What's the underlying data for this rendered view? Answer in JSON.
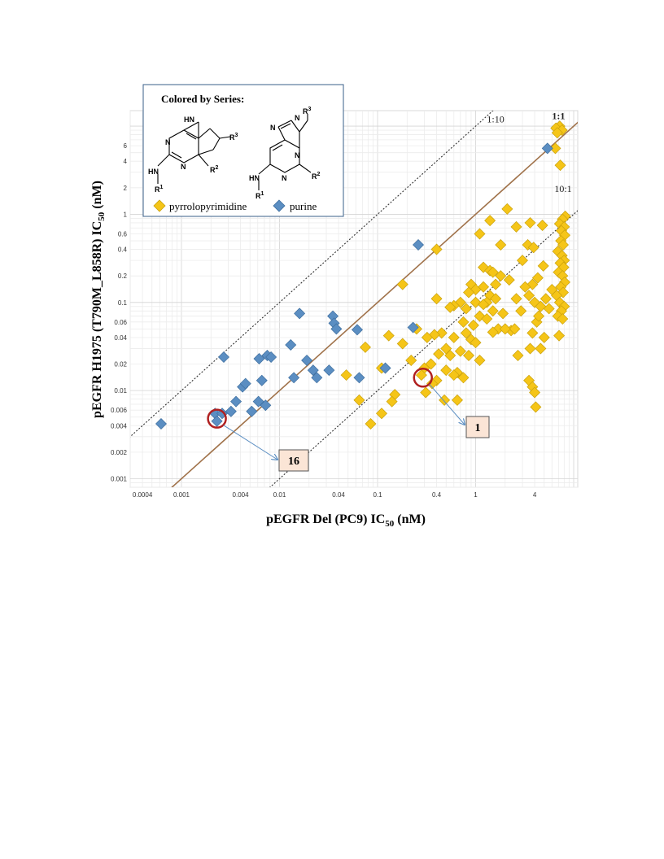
{
  "chart_data": {
    "type": "scatter",
    "xlabel_main": "pEGFR  Del (PC9) IC",
    "xlabel_sub": "50",
    "xlabel_unit": " (nM)",
    "ylabel_main": "pEGFR  H1975  (T790M_L858R)  IC",
    "ylabel_sub": "50",
    "ylabel_unit": " (nM)",
    "x_scale": "log",
    "y_scale": "log",
    "xlim": [
      0.0003,
      11
    ],
    "ylim": [
      0.0008,
      15
    ],
    "x_ticks": [
      {
        "v": 0.0004,
        "label": "0.0004"
      },
      {
        "v": 0.001,
        "label": "0.001"
      },
      {
        "v": 0.004,
        "label": "0.004"
      },
      {
        "v": 0.01,
        "label": "0.01"
      },
      {
        "v": 0.04,
        "label": "0.04"
      },
      {
        "v": 0.1,
        "label": "0.1"
      },
      {
        "v": 0.4,
        "label": "0.4"
      },
      {
        "v": 1,
        "label": "1"
      },
      {
        "v": 4,
        "label": "4"
      }
    ],
    "y_ticks": [
      {
        "v": 0.001,
        "label": "0.001"
      },
      {
        "v": 0.002,
        "label": "0.002"
      },
      {
        "v": 0.004,
        "label": "0.004"
      },
      {
        "v": 0.006,
        "label": "0.006"
      },
      {
        "v": 0.01,
        "label": "0.01"
      },
      {
        "v": 0.02,
        "label": "0.02"
      },
      {
        "v": 0.04,
        "label": "0.04"
      },
      {
        "v": 0.06,
        "label": "0.06"
      },
      {
        "v": 0.1,
        "label": "0.1"
      },
      {
        "v": 0.2,
        "label": "0.2"
      },
      {
        "v": 0.4,
        "label": "0.4"
      },
      {
        "v": 0.6,
        "label": "0.6"
      },
      {
        "v": 1,
        "label": "1"
      },
      {
        "v": 2,
        "label": "2"
      },
      {
        "v": 4,
        "label": "4"
      },
      {
        "v": 6,
        "label": "6"
      }
    ],
    "grid": true,
    "reference_lines": [
      {
        "ratio": 10,
        "label": "1:10",
        "style": "dotted",
        "color": "#333333",
        "label_x": 1.6,
        "label_y": 11
      },
      {
        "ratio": 1,
        "label": "1:1",
        "style": "solid",
        "color": "#a0724a",
        "label_color": "#2eaa4a",
        "label_x": 7.0,
        "label_y": 12
      },
      {
        "ratio": 0.1,
        "label": "10:1",
        "style": "dotted",
        "color": "#333333",
        "label_x": 7.8,
        "label_y": 1.8
      }
    ],
    "legend": {
      "title": "Colored by Series:",
      "placement": "top-left",
      "entries": [
        "pyrrolopyrimidine",
        "purine"
      ]
    },
    "series": [
      {
        "name": "pyrrolopyrimidine",
        "color": "#f5c518",
        "stroke": "#c9a10d",
        "marker": "diamond",
        "points": [
          [
            7.2,
            10
          ],
          [
            6.6,
            9.5
          ],
          [
            7.6,
            9.0
          ],
          [
            6.8,
            8.4
          ],
          [
            6.5,
            5.6
          ],
          [
            7.3,
            3.6
          ],
          [
            8.2,
            0.95
          ],
          [
            7.7,
            0.88
          ],
          [
            7.2,
            0.78
          ],
          [
            8.0,
            0.72
          ],
          [
            7.5,
            0.65
          ],
          [
            8.1,
            0.58
          ],
          [
            7.4,
            0.5
          ],
          [
            7.8,
            0.45
          ],
          [
            6.9,
            0.38
          ],
          [
            7.6,
            0.34
          ],
          [
            8.0,
            0.3
          ],
          [
            7.3,
            0.28
          ],
          [
            7.9,
            0.25
          ],
          [
            7.0,
            0.22
          ],
          [
            7.7,
            0.2
          ],
          [
            8.1,
            0.17
          ],
          [
            7.4,
            0.15
          ],
          [
            7.8,
            0.13
          ],
          [
            6.7,
            0.12
          ],
          [
            7.2,
            0.1
          ],
          [
            8.0,
            0.09
          ],
          [
            7.5,
            0.08
          ],
          [
            6.9,
            0.07
          ],
          [
            7.7,
            0.065
          ],
          [
            7.1,
            0.042
          ],
          [
            2.1,
            1.15
          ],
          [
            1.4,
            0.85
          ],
          [
            1.1,
            0.6
          ],
          [
            1.8,
            0.45
          ],
          [
            3.6,
            0.8
          ],
          [
            4.8,
            0.75
          ],
          [
            2.6,
            0.72
          ],
          [
            3.4,
            0.45
          ],
          [
            3.9,
            0.42
          ],
          [
            3.0,
            0.3
          ],
          [
            1.2,
            0.25
          ],
          [
            1.4,
            0.23
          ],
          [
            1.5,
            0.22
          ],
          [
            1.8,
            0.2
          ],
          [
            2.2,
            0.18
          ],
          [
            1.6,
            0.16
          ],
          [
            0.9,
            0.16
          ],
          [
            1.2,
            0.15
          ],
          [
            1.0,
            0.14
          ],
          [
            0.85,
            0.13
          ],
          [
            1.4,
            0.12
          ],
          [
            1.6,
            0.11
          ],
          [
            1.3,
            0.1
          ],
          [
            1.0,
            0.1
          ],
          [
            0.7,
            0.1
          ],
          [
            1.2,
            0.095
          ],
          [
            0.6,
            0.092
          ],
          [
            0.55,
            0.088
          ],
          [
            0.8,
            0.085
          ],
          [
            1.5,
            0.08
          ],
          [
            1.9,
            0.075
          ],
          [
            1.1,
            0.07
          ],
          [
            1.3,
            0.065
          ],
          [
            0.75,
            0.06
          ],
          [
            0.95,
            0.055
          ],
          [
            1.7,
            0.05
          ],
          [
            2.3,
            0.048
          ],
          [
            1.5,
            0.046
          ],
          [
            0.8,
            0.045
          ],
          [
            0.45,
            0.045
          ],
          [
            0.38,
            0.043
          ],
          [
            0.32,
            0.04
          ],
          [
            0.6,
            0.04
          ],
          [
            0.9,
            0.038
          ],
          [
            1.0,
            0.035
          ],
          [
            0.5,
            0.03
          ],
          [
            0.7,
            0.028
          ],
          [
            0.42,
            0.026
          ],
          [
            0.55,
            0.025
          ],
          [
            0.85,
            0.025
          ],
          [
            1.1,
            0.022
          ],
          [
            0.35,
            0.02
          ],
          [
            0.3,
            0.018
          ],
          [
            0.5,
            0.017
          ],
          [
            0.65,
            0.016
          ],
          [
            0.6,
            0.015
          ],
          [
            0.75,
            0.014
          ],
          [
            0.4,
            0.013
          ],
          [
            0.4,
            0.4
          ],
          [
            0.4,
            0.11
          ],
          [
            0.18,
            0.16
          ],
          [
            0.25,
            0.05
          ],
          [
            3.5,
            0.12
          ],
          [
            4.0,
            0.1
          ],
          [
            4.6,
            0.09
          ],
          [
            5.2,
            0.11
          ],
          [
            5.6,
            0.085
          ],
          [
            6.0,
            0.14
          ],
          [
            3.8,
            0.16
          ],
          [
            4.3,
            0.19
          ],
          [
            3.2,
            0.15
          ],
          [
            4.9,
            0.26
          ],
          [
            4.2,
            0.06
          ],
          [
            3.6,
            0.03
          ],
          [
            4.6,
            0.03
          ],
          [
            3.8,
            0.045
          ],
          [
            5.0,
            0.04
          ],
          [
            4.4,
            0.07
          ],
          [
            2.6,
            0.11
          ],
          [
            2.9,
            0.08
          ],
          [
            2.5,
            0.05
          ],
          [
            2.0,
            0.05
          ],
          [
            2.7,
            0.025
          ],
          [
            3.5,
            0.013
          ],
          [
            3.8,
            0.011
          ],
          [
            4.0,
            0.0095
          ],
          [
            4.1,
            0.0065
          ],
          [
            0.048,
            0.015
          ],
          [
            0.075,
            0.031
          ],
          [
            0.11,
            0.018
          ],
          [
            0.13,
            0.042
          ],
          [
            0.18,
            0.034
          ],
          [
            0.22,
            0.022
          ],
          [
            0.28,
            0.015
          ],
          [
            0.31,
            0.0095
          ],
          [
            0.15,
            0.009
          ],
          [
            0.14,
            0.0075
          ],
          [
            0.11,
            0.0055
          ],
          [
            0.085,
            0.0042
          ],
          [
            0.065,
            0.0078
          ],
          [
            0.36,
            0.012
          ],
          [
            0.48,
            0.0078
          ],
          [
            0.65,
            0.0078
          ]
        ]
      },
      {
        "name": "purine",
        "color": "#5b8ec2",
        "stroke": "#3f6f9f",
        "marker": "diamond",
        "points": [
          [
            0.00062,
            0.0042
          ],
          [
            0.0022,
            0.0055
          ],
          [
            0.0023,
            0.0045
          ],
          [
            0.0026,
            0.0055
          ],
          [
            0.0032,
            0.0058
          ],
          [
            0.0036,
            0.0075
          ],
          [
            0.0042,
            0.011
          ],
          [
            0.0045,
            0.012
          ],
          [
            0.0052,
            0.0058
          ],
          [
            0.0061,
            0.0075
          ],
          [
            0.0072,
            0.0068
          ],
          [
            0.0066,
            0.013
          ],
          [
            0.0062,
            0.023
          ],
          [
            0.0075,
            0.025
          ],
          [
            0.0082,
            0.024
          ],
          [
            0.0027,
            0.024
          ],
          [
            0.013,
            0.033
          ],
          [
            0.016,
            0.075
          ],
          [
            0.019,
            0.022
          ],
          [
            0.022,
            0.017
          ],
          [
            0.024,
            0.014
          ],
          [
            0.014,
            0.014
          ],
          [
            0.035,
            0.07
          ],
          [
            0.036,
            0.058
          ],
          [
            0.038,
            0.05
          ],
          [
            0.062,
            0.049
          ],
          [
            0.065,
            0.014
          ],
          [
            0.032,
            0.017
          ],
          [
            0.12,
            0.018
          ],
          [
            0.23,
            0.052
          ],
          [
            0.26,
            0.45
          ],
          [
            5.4,
            5.6
          ]
        ]
      }
    ],
    "callouts": [
      {
        "label": "1",
        "x": 0.29,
        "y": 0.014
      },
      {
        "label": "16",
        "x": 0.0023,
        "y": 0.0048
      }
    ]
  },
  "structures": {
    "left": {
      "nh": "HN",
      "r1": "R",
      "r1_sup": "1",
      "r2": "R",
      "r2_sup": "2",
      "r3": "R",
      "r3_sup": "3",
      "n": "N",
      "hn_top": "HN"
    },
    "right": {
      "nh": "HN",
      "r1": "R",
      "r1_sup": "1",
      "r2": "R",
      "r2_sup": "2",
      "r3": "R",
      "r3_sup": "3",
      "n": "N"
    }
  }
}
